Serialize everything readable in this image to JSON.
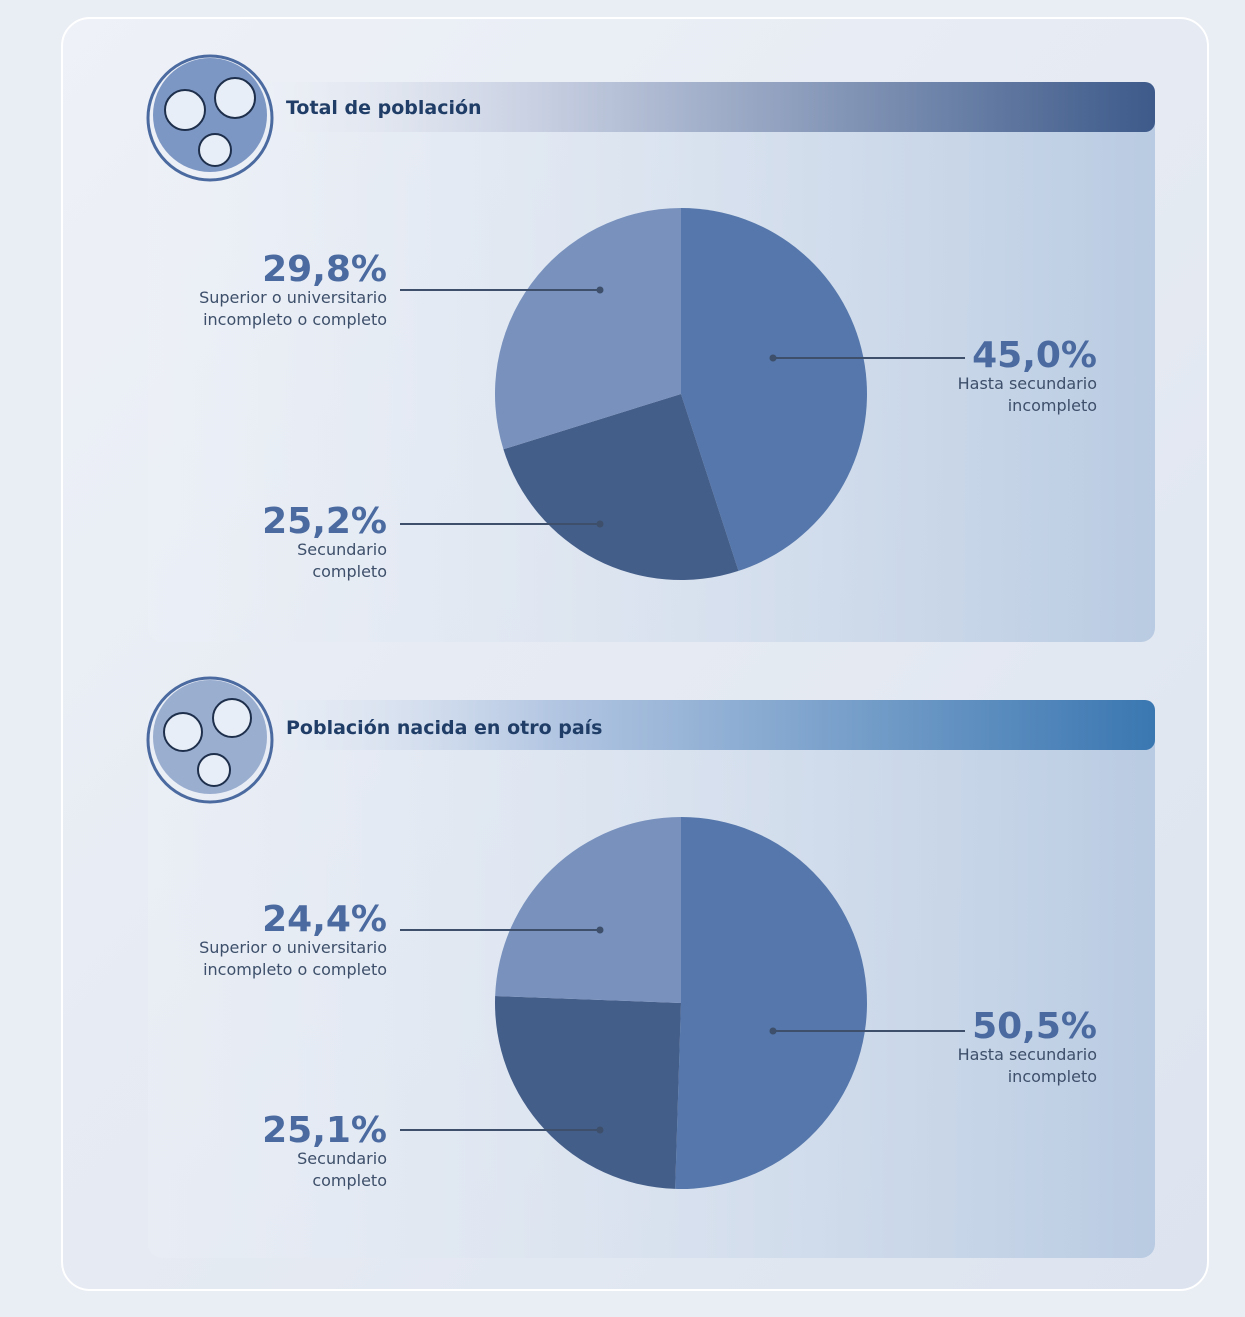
{
  "chart_data": [
    {
      "type": "pie",
      "title": "Total de población",
      "categories": [
        [
          "Hasta secundario",
          "incompleto"
        ],
        [
          "Secundario",
          "completo"
        ],
        [
          "Superior o universitario",
          "incompleto o completo"
        ]
      ],
      "values": [
        45.0,
        25.2,
        29.8
      ],
      "value_labels": [
        "45,0%",
        "25,2%",
        "29,8%"
      ],
      "colors": [
        "#5577ab",
        "#445e8a",
        "#7891bd"
      ]
    },
    {
      "type": "pie",
      "title": "Población nacida en otro país",
      "categories": [
        [
          "Hasta secundario",
          "incompleto"
        ],
        [
          "Secundario",
          "completo"
        ],
        [
          "Superior o universitario",
          "incompleto o completo"
        ]
      ],
      "values": [
        50.5,
        25.1,
        24.4
      ],
      "value_labels": [
        "50,5%",
        "25,1%",
        "24,4%"
      ],
      "colors": [
        "#5577ab",
        "#445e8a",
        "#7891bd"
      ]
    }
  ]
}
